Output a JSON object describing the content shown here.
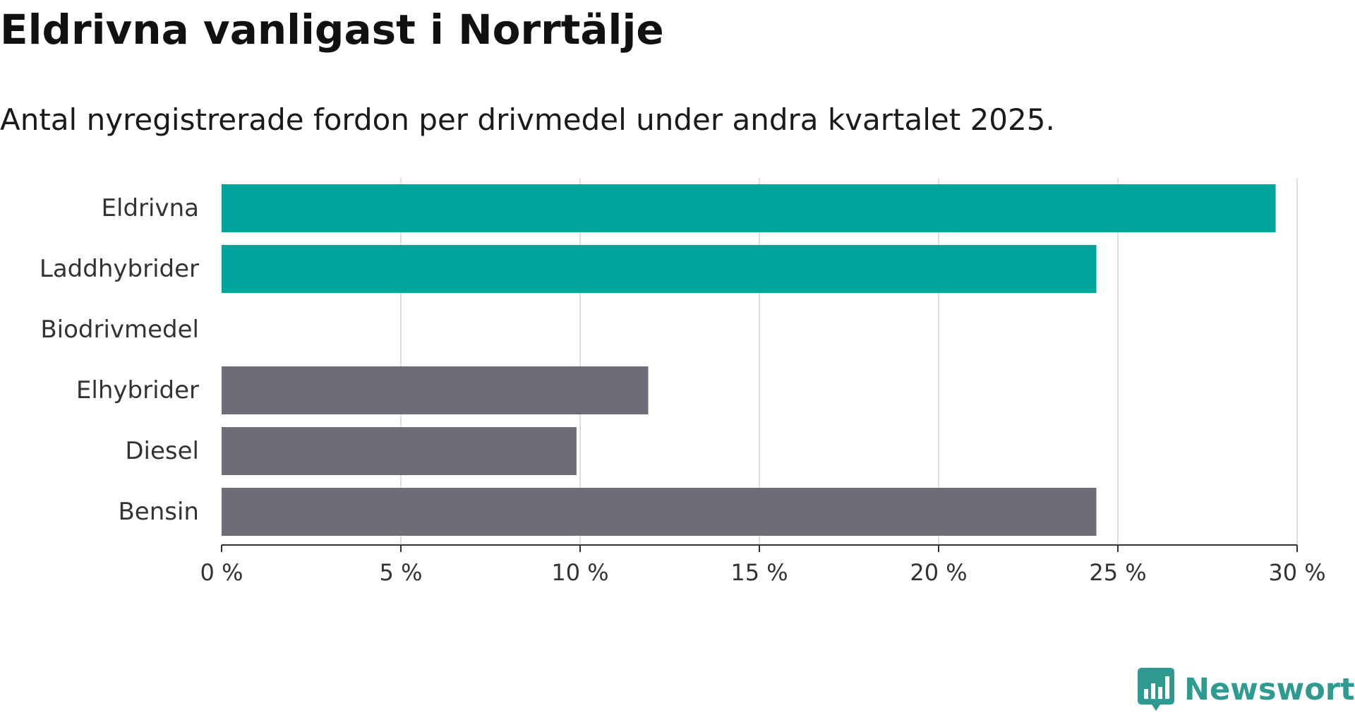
{
  "title": "Eldrivna vanligast i Norrtälje",
  "subtitle": "Antal nyregistrerade fordon per drivmedel under andra kvartalet 2025.",
  "brand": {
    "name": "Newsworthy",
    "icon": "newsworthy-logo-icon",
    "color": "#2f9a90"
  },
  "colors": {
    "highlight": "#00a49a",
    "default": "#6e6d75",
    "grid": "#dedede",
    "axis": "#333333",
    "label": "#333333"
  },
  "chart_data": {
    "type": "bar",
    "orientation": "horizontal",
    "title": "Eldrivna vanligast i Norrtälje",
    "subtitle": "Antal nyregistrerade fordon per drivmedel under andra kvartalet 2025.",
    "categories": [
      "Eldrivna",
      "Laddhybrider",
      "Biodrivmedel",
      "Elhybrider",
      "Diesel",
      "Bensin"
    ],
    "values": [
      29.4,
      24.4,
      0,
      11.9,
      9.9,
      24.4
    ],
    "highlighted": [
      true,
      true,
      false,
      false,
      false,
      false
    ],
    "xlim": [
      0,
      30
    ],
    "xticks": [
      0,
      5,
      10,
      15,
      20,
      25,
      30
    ],
    "xtick_labels": [
      "0 %",
      "5 %",
      "10 %",
      "15 %",
      "20 %",
      "25 %",
      "30 %"
    ],
    "grid": "vertical",
    "legend": "none"
  }
}
